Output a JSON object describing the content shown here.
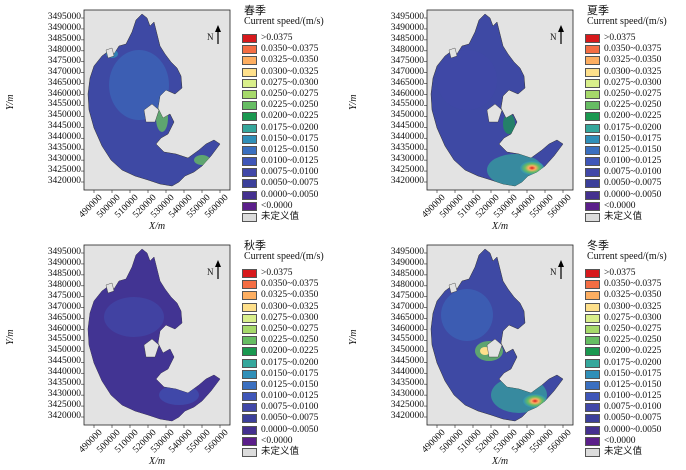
{
  "figure": {
    "panels": [
      {
        "season": "春季",
        "variant": "spring"
      },
      {
        "season": "夏季",
        "variant": "summer"
      },
      {
        "season": "秋季",
        "variant": "autumn"
      },
      {
        "season": "冬季",
        "variant": "winter"
      }
    ],
    "legend_title": "Current speed/(m/s)",
    "legend_items": [
      {
        "label": ">0.0375",
        "color": "#d7191c"
      },
      {
        "label": "0.0350~0.0375",
        "color": "#f46d43"
      },
      {
        "label": "0.0325~0.0350",
        "color": "#fdae61"
      },
      {
        "label": "0.0300~0.0325",
        "color": "#fee08b"
      },
      {
        "label": "0.0275~0.0300",
        "color": "#d9ef8b"
      },
      {
        "label": "0.0250~0.0275",
        "color": "#a6d96a"
      },
      {
        "label": "0.0225~0.0250",
        "color": "#66bd63"
      },
      {
        "label": "0.0200~0.0225",
        "color": "#1a9850"
      },
      {
        "label": "0.0175~0.0200",
        "color": "#35a79c"
      },
      {
        "label": "0.0150~0.0175",
        "color": "#2f8fb8"
      },
      {
        "label": "0.0125~0.0150",
        "color": "#3a6fc0"
      },
      {
        "label": "0.0100~0.0125",
        "color": "#3f56b8"
      },
      {
        "label": "0.0075~0.0100",
        "color": "#4148a8"
      },
      {
        "label": "0.0050~0.0075",
        "color": "#3b3f9a"
      },
      {
        "label": "0.0000~0.0050",
        "color": "#44308f"
      },
      {
        "label": "<0.0000",
        "color": "#5b1f8a"
      },
      {
        "label": "未定义值",
        "color": "#dcdcdc"
      }
    ],
    "y_ticks": [
      "3495000",
      "3490000",
      "3485000",
      "3480000",
      "3475000",
      "3470000",
      "3465000",
      "3460000",
      "3455000",
      "3450000",
      "3445000",
      "3440000",
      "3435000",
      "3430000",
      "3425000",
      "3420000"
    ],
    "x_ticks": [
      "490000",
      "500000",
      "510000",
      "520000",
      "530000",
      "540000",
      "550000",
      "560000"
    ],
    "x_axis_label": "X/m",
    "y_axis_label": "Y/m",
    "north_label": "N"
  }
}
